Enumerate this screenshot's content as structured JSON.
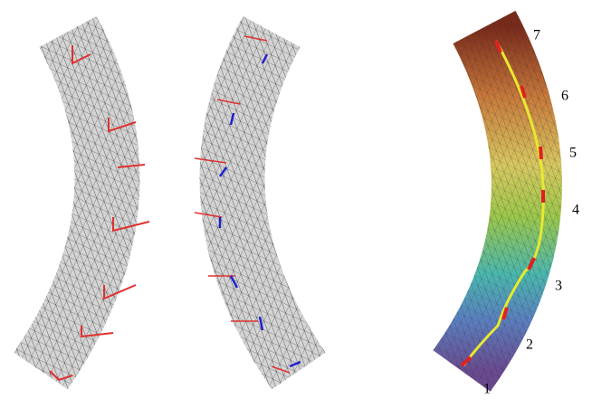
{
  "labels": [
    "1",
    "2",
    "3",
    "4",
    "5",
    "6",
    "7"
  ]
}
